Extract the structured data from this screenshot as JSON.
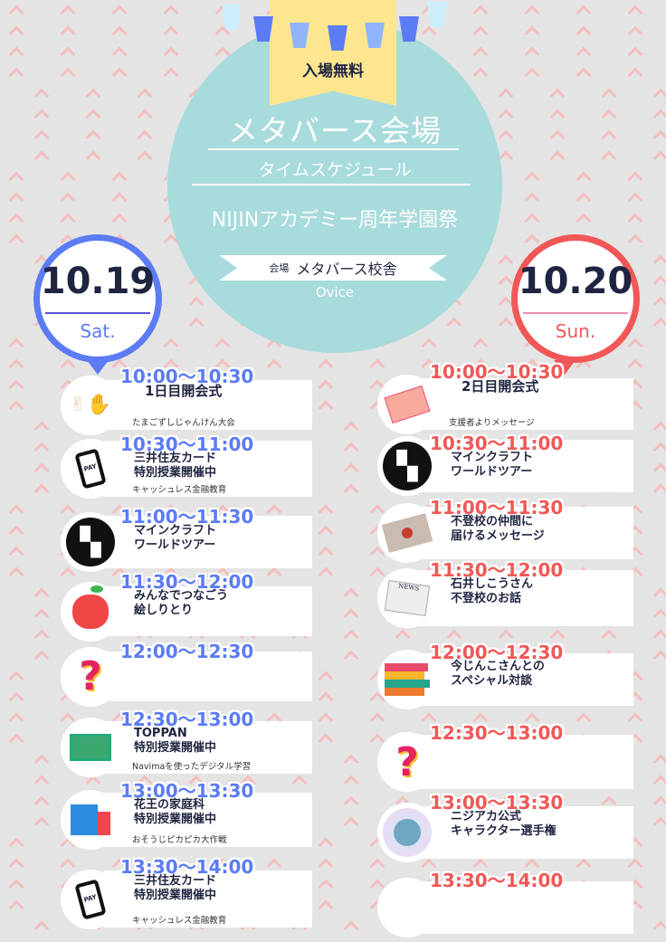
{
  "header": {
    "admission": "入場無料",
    "title": "メタバース会場",
    "subtitle": "タイムスケジュール",
    "festival": "NIJINアカデミー周年学園祭",
    "venue_label": "会場",
    "venue_name": "メタバース校舎",
    "platform": "Ovice"
  },
  "colors": {
    "day1": "#5b7cf5",
    "day2": "#f25757",
    "circle": "#a8dbdc",
    "banner": "#fde68f",
    "background": "#e4e4e4",
    "chevron": "#f7b9b9"
  },
  "day1": {
    "date": "10.19",
    "weekday": "Sat.",
    "items": [
      {
        "time": "10:00〜10:30",
        "title": [
          "1日目開会式"
        ],
        "sub": "たまごずしじゃんけん大会",
        "icon": "rock-paper-scissors-hands-icon"
      },
      {
        "time": "10:30〜11:00",
        "title": [
          "三井住友カード",
          "特別授業開催中"
        ],
        "sub": "キャッシュレス金融教育",
        "icon": "phone-pay-icon"
      },
      {
        "time": "11:00〜11:30",
        "title": [
          "マインクラフト",
          "ワールドツアー"
        ],
        "sub": "",
        "icon": "creeper-icon"
      },
      {
        "time": "11:30〜12:00",
        "title": [
          "みんなでつなごう",
          "絵しりとり"
        ],
        "sub": "",
        "icon": "apple-icon"
      },
      {
        "time": "12:00〜12:30",
        "title": [],
        "sub": "",
        "icon": "question-mark-icon"
      },
      {
        "time": "12:30〜13:00",
        "title": [
          "TOPPAN",
          "特別授業開催中"
        ],
        "sub": "Navimaを使ったデジタル学習",
        "icon": "digital-learning-icon"
      },
      {
        "time": "13:00〜13:30",
        "title": [
          "花王の家庭科",
          "特別授業開催中"
        ],
        "sub": "おそうじピカピカ大作戦",
        "icon": "cleaning-supplies-icon"
      },
      {
        "time": "13:30〜14:00",
        "title": [
          "三井住友カード",
          "特別授業開催中"
        ],
        "sub": "キャッシュレス金融教育",
        "icon": "phone-pay-icon"
      }
    ]
  },
  "day2": {
    "date": "10.20",
    "weekday": "Sun.",
    "items": [
      {
        "time": "10:00〜10:30",
        "title": [
          "2日目開会式"
        ],
        "sub": "支援者よりメッセージ",
        "icon": "envelope-icon"
      },
      {
        "time": "10:30〜11:00",
        "title": [
          "マインクラフト",
          "ワールドツアー"
        ],
        "sub": "",
        "icon": "creeper-icon"
      },
      {
        "time": "11:00〜11:30",
        "title": [
          "不登校の仲間に",
          "届けるメッセージ"
        ],
        "sub": "",
        "icon": "sealed-letter-icon"
      },
      {
        "time": "11:30〜12:00",
        "title": [
          "石井しこうさん",
          "不登校のお話"
        ],
        "sub": "",
        "icon": "newspaper-icon"
      },
      {
        "time": "12:00〜12:30",
        "title": [
          "今じんこさんとの",
          "スペシャル対談"
        ],
        "sub": "",
        "icon": "books-icon"
      },
      {
        "time": "12:30〜13:00",
        "title": [],
        "sub": "",
        "icon": "question-mark-icon"
      },
      {
        "time": "13:00〜13:30",
        "title": [
          "ニジアカ公式",
          "キャラクター選手権"
        ],
        "sub": "",
        "icon": "character-avatar-icon"
      },
      {
        "time": "13:30〜14:00",
        "title": [],
        "sub": "",
        "icon": "blank-icon"
      }
    ]
  }
}
